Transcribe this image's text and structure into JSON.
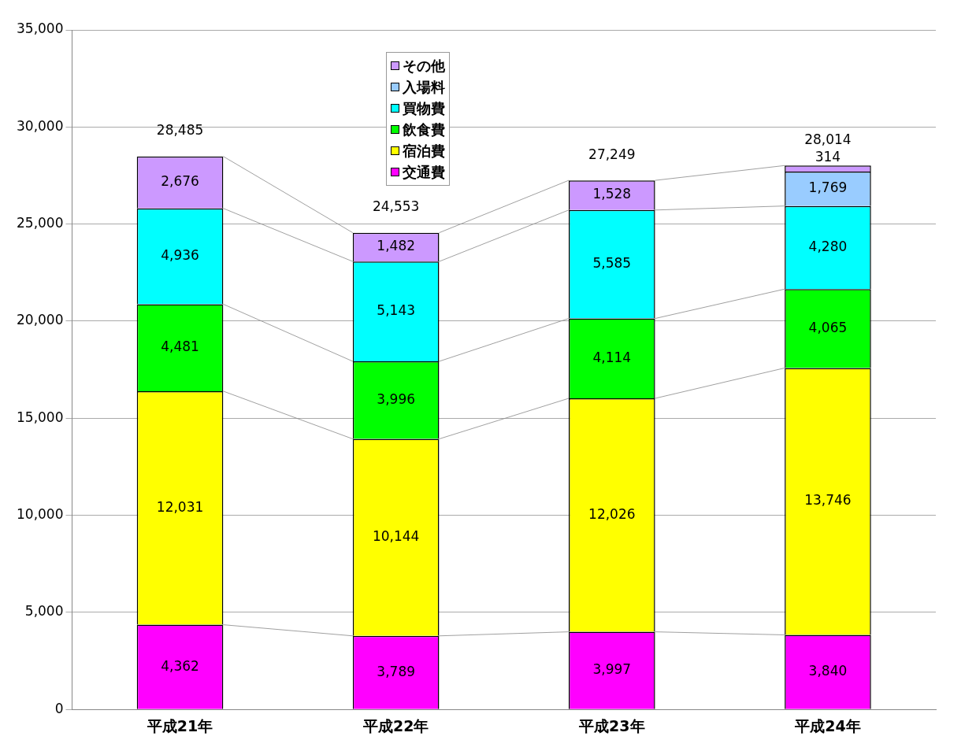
{
  "chart_data": {
    "type": "bar",
    "stacked": true,
    "categories": [
      "平成21年",
      "平成22年",
      "平成23年",
      "平成24年"
    ],
    "series": [
      {
        "name": "交通費",
        "color": "#ff00ff",
        "values": [
          4362,
          3789,
          3997,
          3840
        ],
        "value_labels": [
          "4,362",
          "3,789",
          "3,997",
          "3,840"
        ]
      },
      {
        "name": "宿泊費",
        "color": "#ffff00",
        "values": [
          12031,
          10144,
          12026,
          13746
        ],
        "value_labels": [
          "12,031",
          "10,144",
          "12,026",
          "13,746"
        ]
      },
      {
        "name": "飲食費",
        "color": "#00ff00",
        "values": [
          4481,
          3996,
          4114,
          4065
        ],
        "value_labels": [
          "4,481",
          "3,996",
          "4,114",
          "4,065"
        ]
      },
      {
        "name": "買物費",
        "color": "#00ffff",
        "values": [
          4936,
          5143,
          5585,
          4280
        ],
        "value_labels": [
          "4,936",
          "5,143",
          "5,585",
          "4,280"
        ]
      },
      {
        "name": "入場料",
        "color": "#99ccff",
        "values": [
          null,
          null,
          null,
          1769
        ],
        "value_labels": [
          null,
          null,
          null,
          "1,769"
        ]
      },
      {
        "name": "その他",
        "color": "#cc99ff",
        "values": [
          2676,
          1482,
          1528,
          314
        ],
        "value_labels": [
          "2,676",
          "1,482",
          "1,528",
          "314"
        ]
      }
    ],
    "totals": [
      "28,485",
      "24,553",
      "27,249",
      "28,014"
    ],
    "ylim": [
      0,
      35000
    ],
    "yticks": [
      0,
      {
        "value": 5000,
        "label": "5,000"
      },
      {
        "value": 10000,
        "label": "10,000"
      },
      {
        "value": 15000,
        "label": "15,000"
      },
      {
        "value": 20000,
        "label": "20,000"
      },
      {
        "value": 25000,
        "label": "25,000"
      },
      {
        "value": 30000,
        "label": "30,000"
      },
      {
        "value": 35000,
        "label": "35,000"
      }
    ],
    "grid": "y",
    "legend": "top"
  }
}
